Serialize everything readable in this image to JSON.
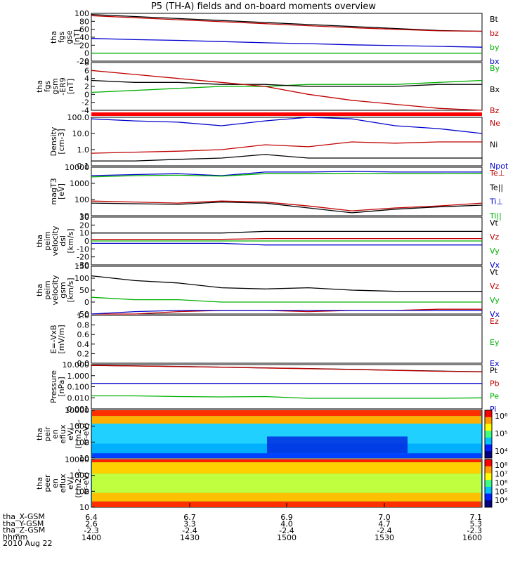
{
  "title": "P5 (TH-A) fields and on-board moments overview",
  "chart_data": [
    {
      "type": "line",
      "panel": "fgs-gse",
      "ylabel": [
        "tha",
        "fgs",
        "gse",
        "[nT]"
      ],
      "yticks": [
        "100",
        "80",
        "60",
        "40",
        "20",
        "0",
        "-20"
      ],
      "series": [
        {
          "name": "Bt",
          "color": "#000000",
          "values": [
            97,
            92,
            87,
            82,
            77,
            72,
            67,
            62,
            57,
            55
          ]
        },
        {
          "name": "bz",
          "color": "#c00000",
          "values": [
            94,
            89,
            84,
            79,
            74,
            69,
            64,
            60,
            56,
            55
          ]
        },
        {
          "name": "by",
          "color": "#00b000",
          "values": [
            0,
            0,
            0,
            0,
            0,
            0,
            0,
            0,
            0,
            0
          ]
        },
        {
          "name": "bx",
          "color": "#0000cc",
          "values": [
            37,
            34,
            32,
            29,
            26,
            24,
            21,
            19,
            17,
            15
          ]
        }
      ]
    },
    {
      "type": "line",
      "panel": "fgs-gsm",
      "ylabel": [
        "tha",
        "fgs",
        "gsm",
        "-ER9",
        "[nT]"
      ],
      "yticks": [
        "8",
        "6",
        "4",
        "2",
        "0",
        "-2",
        "-4"
      ],
      "series": [
        {
          "name": "By",
          "color": "#00b000",
          "values": [
            0.5,
            1,
            1.5,
            2,
            2,
            2.5,
            2.5,
            2.5,
            3,
            3.5
          ]
        },
        {
          "name": "Bx",
          "color": "#000000",
          "values": [
            3.5,
            3,
            3,
            2.5,
            2.5,
            2,
            2,
            2,
            2.5,
            2.5
          ]
        },
        {
          "name": "Bz",
          "color": "#c00000",
          "values": [
            6,
            5,
            4,
            3,
            2,
            0,
            -1.5,
            -2.5,
            -3.5,
            -4.5
          ]
        }
      ]
    },
    {
      "type": "line",
      "panel": "density",
      "ylabel": [
        "Density",
        "[cm-3]"
      ],
      "yticks": [
        "100.0",
        "10.0",
        "1.0",
        "0.1"
      ],
      "scale": "log",
      "series": [
        {
          "name": "Ne",
          "color": "#c00000",
          "values": [
            0.6,
            0.7,
            0.8,
            1.0,
            2.0,
            1.5,
            3.0,
            2.5,
            3.0,
            3.0
          ]
        },
        {
          "name": "Ni",
          "color": "#000000",
          "values": [
            0.2,
            0.2,
            0.25,
            0.3,
            0.5,
            0.3,
            0.3,
            0.3,
            0.3,
            0.3
          ]
        },
        {
          "name": "Npot",
          "color": "#0000cc",
          "values": [
            80,
            60,
            50,
            30,
            60,
            100,
            80,
            30,
            20,
            10
          ]
        }
      ]
    },
    {
      "type": "line",
      "panel": "temperature",
      "ylabel": [
        "magT3",
        "[eV]"
      ],
      "yticks": [
        "10000",
        "1000",
        "100",
        "10"
      ],
      "scale": "log",
      "series": [
        {
          "name": "Te⊥",
          "color": "#c00000",
          "values": [
            80,
            70,
            60,
            80,
            70,
            40,
            20,
            30,
            40,
            60
          ]
        },
        {
          "name": "Te||",
          "color": "#000000",
          "values": [
            60,
            55,
            50,
            70,
            60,
            30,
            15,
            25,
            35,
            45
          ]
        },
        {
          "name": "Ti⊥",
          "color": "#0000cc",
          "values": [
            3000,
            3500,
            4000,
            3000,
            5000,
            5000,
            5500,
            5000,
            5000,
            5000
          ]
        },
        {
          "name": "Ti||",
          "color": "#00b000",
          "values": [
            2500,
            3000,
            3200,
            2800,
            4000,
            4000,
            4200,
            4000,
            4000,
            4200
          ]
        }
      ]
    },
    {
      "type": "line",
      "panel": "velocity-dsl",
      "ylabel": [
        "tha",
        "peim",
        "velocity",
        "dsl",
        "[km/s]"
      ],
      "yticks": [
        "30",
        "20",
        "10",
        "0",
        "-10",
        "-20",
        "-30"
      ],
      "series": [
        {
          "name": "Vt",
          "color": "#000000",
          "values": [
            10,
            10,
            10,
            10,
            12,
            12,
            12,
            12,
            12,
            12
          ]
        },
        {
          "name": "Vz",
          "color": "#c00000",
          "values": [
            2,
            2,
            2,
            2,
            3,
            3,
            3,
            3,
            3,
            3
          ]
        },
        {
          "name": "Vy",
          "color": "#00b000",
          "values": [
            0,
            0,
            0,
            0,
            0,
            0,
            0,
            0,
            0,
            0
          ]
        },
        {
          "name": "Vx",
          "color": "#0000cc",
          "values": [
            -3,
            -3,
            -3,
            -3,
            -5,
            -5,
            -5,
            -5,
            -5,
            -5
          ]
        }
      ]
    },
    {
      "type": "line",
      "panel": "velocity-gsm",
      "ylabel": [
        "tha",
        "peim",
        "velocity",
        "gsm",
        "[km/s]"
      ],
      "yticks": [
        "150",
        "100",
        "50",
        "0",
        "-50"
      ],
      "series": [
        {
          "name": "Vt",
          "color": "#000000",
          "values": [
            110,
            90,
            80,
            60,
            55,
            60,
            50,
            45,
            45,
            45
          ]
        },
        {
          "name": "Vz",
          "color": "#c00000",
          "values": [
            -60,
            -50,
            -40,
            -35,
            -35,
            -40,
            -35,
            -35,
            -30,
            -30
          ]
        },
        {
          "name": "Vy",
          "color": "#00b000",
          "values": [
            20,
            10,
            10,
            0,
            0,
            0,
            0,
            0,
            0,
            0
          ]
        },
        {
          "name": "Vx",
          "color": "#0000cc",
          "values": [
            -50,
            -40,
            -35,
            -35,
            -35,
            -35,
            -35,
            -35,
            -35,
            -35
          ]
        }
      ]
    },
    {
      "type": "line",
      "panel": "efield",
      "ylabel": [
        "E=-VxB",
        "[mV/m]"
      ],
      "yticks": [
        "1.0",
        "0.8",
        "0.6",
        "0.4",
        "0.2",
        "0.0"
      ],
      "series": [
        {
          "name": "Ez",
          "color": "#c00000",
          "values": []
        },
        {
          "name": "Ey",
          "color": "#00b000",
          "values": []
        },
        {
          "name": "Ex",
          "color": "#0000cc",
          "values": []
        }
      ]
    },
    {
      "type": "line",
      "panel": "pressure",
      "ylabel": [
        "Pressure",
        "[nPa]"
      ],
      "yticks": [
        "10.000",
        "1.000",
        "0.100",
        "0.010",
        "0.001"
      ],
      "scale": "log",
      "series": [
        {
          "name": "Pt",
          "color": "#000000",
          "values": [
            8.5,
            7.6,
            6.7,
            5.9,
            5.0,
            4.4,
            3.7,
            3.1,
            2.6,
            2.3
          ]
        },
        {
          "name": "Pb",
          "color": "#c00000",
          "values": [
            8.4,
            7.5,
            6.6,
            5.8,
            4.9,
            4.3,
            3.6,
            3.0,
            2.5,
            2.2
          ]
        },
        {
          "name": "Pe",
          "color": "#00b000",
          "values": [
            0.015,
            0.015,
            0.013,
            0.012,
            0.013,
            0.009,
            0.009,
            0.009,
            0.009,
            0.01
          ]
        },
        {
          "name": "Pi",
          "color": "#0000cc",
          "values": [
            0.2,
            0.2,
            0.2,
            0.2,
            0.2,
            0.2,
            0.2,
            0.2,
            0.2,
            0.2
          ]
        }
      ]
    },
    {
      "type": "heatmap",
      "panel": "peir-eflux",
      "ylabel": [
        "tha",
        "peir",
        "en",
        "eflux",
        "eV/",
        "(cm2-s-",
        "sr-eV)"
      ],
      "yticks": [
        "10000",
        "1000",
        "100",
        "10"
      ],
      "colorbar": [
        "10⁶",
        "10⁵",
        "10⁴"
      ]
    },
    {
      "type": "heatmap",
      "panel": "peer-eflux",
      "ylabel": [
        "tha",
        "peer",
        "en",
        "eflux",
        "eV/",
        "(cm2-s-",
        "sr-eV)"
      ],
      "yticks": [
        "10000",
        "1000",
        "100",
        "10"
      ],
      "colorbar": [
        "10⁸",
        "10⁷",
        "10⁶",
        "10⁵",
        "10⁴"
      ]
    }
  ],
  "xaxis": {
    "rows": [
      {
        "label": "tha_X-GSM",
        "values": [
          "6.4",
          "6.7",
          "6.9",
          "7.0",
          "7.1"
        ]
      },
      {
        "label": "tha_Y-GSM",
        "values": [
          "2.6",
          "3.3",
          "4.0",
          "4.7",
          "5.3"
        ]
      },
      {
        "label": "tha_Z-GSM",
        "values": [
          "-2.3",
          "-2.4",
          "-2.4",
          "-2.4",
          "-2.3"
        ]
      },
      {
        "label": "hhmm",
        "values": [
          "1400",
          "1430",
          "1500",
          "1530",
          "1600"
        ]
      }
    ],
    "date": "2010 Aug 22"
  }
}
